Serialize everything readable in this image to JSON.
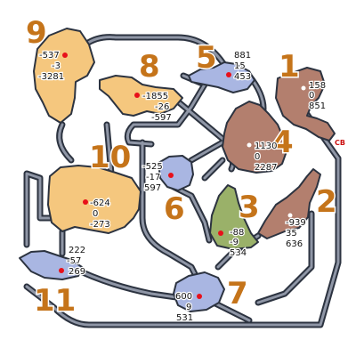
{
  "colors": {
    "area_brown": "#b37f6e",
    "area_orange": "#f5c77e",
    "area_blue": "#a9b6e2",
    "area_green": "#9ab169",
    "route": "#2c3340",
    "route_fill": "#8f96a6",
    "zone_number": "#c5741a",
    "marker_red": "#e8101a"
  },
  "zones": [
    {
      "id": "1",
      "number": "1",
      "color": "brown",
      "coords": [
        "158",
        "0",
        "851"
      ]
    },
    {
      "id": "2",
      "number": "2",
      "color": "brown",
      "coords": [
        "-939",
        "35",
        "636"
      ]
    },
    {
      "id": "3",
      "number": "3",
      "color": "green",
      "coords": [
        "-88",
        "-9",
        "534"
      ]
    },
    {
      "id": "4",
      "number": "4",
      "color": "brown",
      "coords": [
        "1130",
        "0",
        "2287"
      ]
    },
    {
      "id": "5",
      "number": "5",
      "color": "blue",
      "coords": [
        "881",
        "15",
        "453"
      ]
    },
    {
      "id": "6",
      "number": "6",
      "color": "blue",
      "coords": [
        "-525",
        "-17",
        "597"
      ]
    },
    {
      "id": "7",
      "number": "7",
      "color": "blue",
      "coords": [
        "600",
        "9",
        "531"
      ]
    },
    {
      "id": "8",
      "number": "8",
      "color": "orange",
      "coords": [
        "-1855",
        "-26",
        "-597"
      ]
    },
    {
      "id": "9",
      "number": "9",
      "color": "orange",
      "coords": [
        "-537",
        "-3",
        "-3281"
      ]
    },
    {
      "id": "10",
      "number": "10",
      "color": "orange",
      "coords": [
        "-624",
        "0",
        "-273"
      ]
    },
    {
      "id": "11",
      "number": "11",
      "color": "blue",
      "coords": [
        "222",
        "-57",
        "269"
      ]
    }
  ],
  "cb_label": "CB"
}
